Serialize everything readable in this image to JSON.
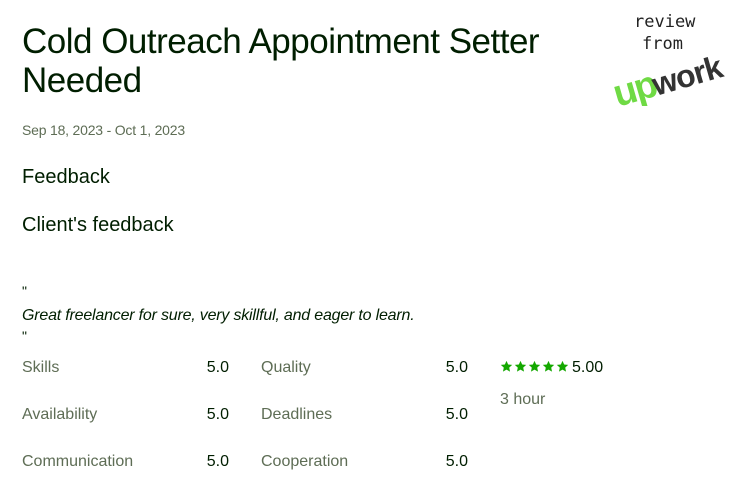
{
  "job": {
    "title": "Cold Outreach Appointment Setter Needed",
    "date_range": "Sep 18, 2023 - Oct 1, 2023"
  },
  "sections": {
    "feedback_heading": "Feedback",
    "client_feedback_heading": "Client's feedback"
  },
  "feedback": {
    "quote_open": "\"",
    "text": "Great freelancer for sure, very skillful, and eager to learn.",
    "quote_close": "\""
  },
  "ratings": {
    "skills": {
      "label": "Skills",
      "value": "5.0"
    },
    "quality": {
      "label": "Quality",
      "value": "5.0"
    },
    "availability": {
      "label": "Availability",
      "value": "5.0"
    },
    "deadlines": {
      "label": "Deadlines",
      "value": "5.0"
    },
    "communication": {
      "label": "Communication",
      "value": "5.0"
    },
    "cooperation": {
      "label": "Cooperation",
      "value": "5.0"
    }
  },
  "summary": {
    "star_count": 5,
    "overall_score": "5.00",
    "hours": "3 hour",
    "star_color": "#14a800"
  },
  "badge": {
    "line1": "review",
    "line2": "from",
    "logo_text": "upwork",
    "logo_green": "#6fda44",
    "logo_dark": "#333333"
  }
}
